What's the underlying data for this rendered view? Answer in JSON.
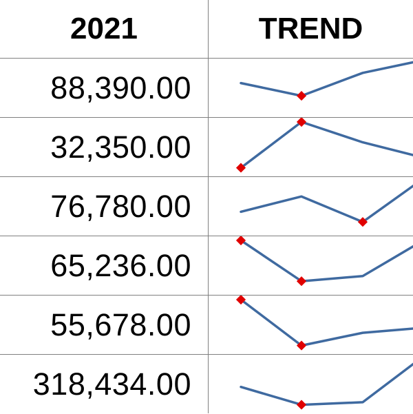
{
  "header": {
    "year_label": "2021",
    "trend_label": "TREND"
  },
  "rows": [
    {
      "value": "88,390.00",
      "trend": [
        0.6,
        0.35,
        0.8,
        1.05
      ],
      "markers": [
        1
      ]
    },
    {
      "value": "32,350.00",
      "trend": [
        0.1,
        1.0,
        0.6,
        0.3
      ],
      "markers": [
        0,
        1
      ]
    },
    {
      "value": "76,780.00",
      "trend": [
        0.4,
        0.7,
        0.2,
        1.05
      ],
      "markers": [
        2
      ]
    },
    {
      "value": "65,236.00",
      "trend": [
        1.0,
        0.2,
        0.3,
        1.0
      ],
      "markers": [
        0,
        1
      ]
    },
    {
      "value": "55,678.00",
      "trend": [
        1.0,
        0.1,
        0.35,
        0.45
      ],
      "markers": [
        0,
        1
      ]
    },
    {
      "value": "318,434.00",
      "trend": [
        0.45,
        0.1,
        0.15,
        1.05
      ],
      "markers": [
        1
      ]
    }
  ],
  "colors": {
    "line": "#3f6aa0",
    "marker": "#e00000",
    "grid": "#7f7f7f"
  }
}
